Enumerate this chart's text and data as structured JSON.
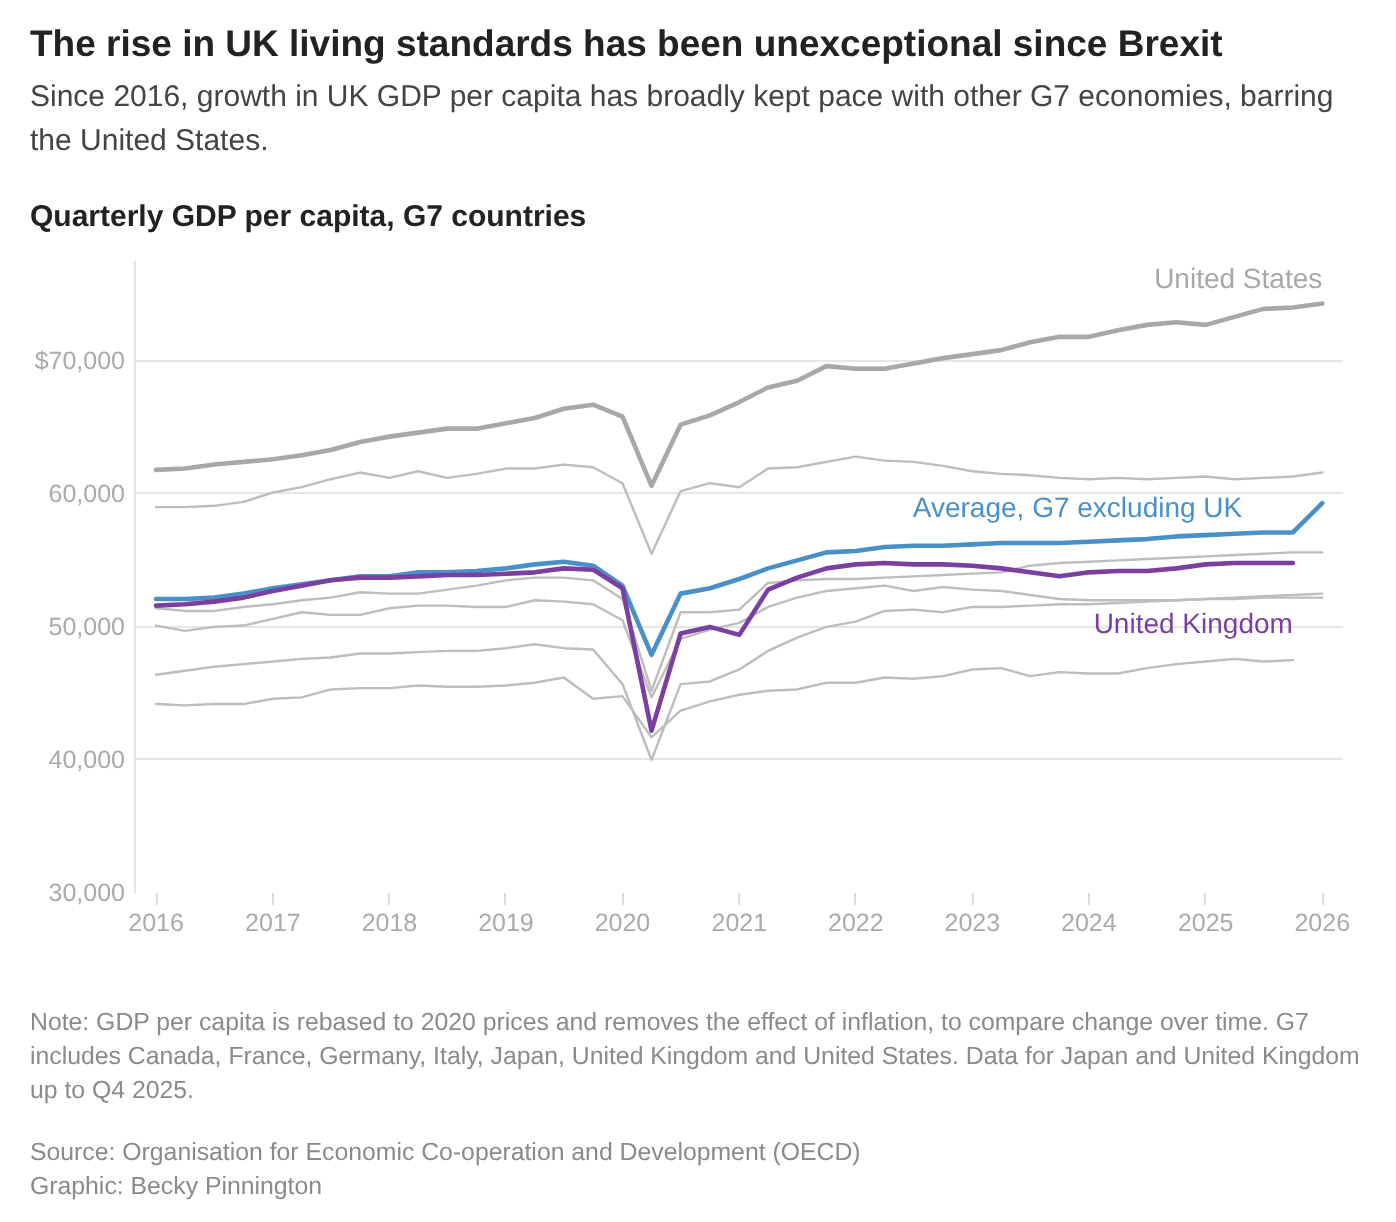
{
  "chart_data": {
    "type": "line",
    "title": "The rise in UK living standards has been unexceptional since Brexit",
    "subtitle": "Since 2016, growth in UK GDP per capita has broadly kept pace with other G7 economies, barring the United States.",
    "ylabel": "Quarterly GDP per capita, G7 countries",
    "annotations": [
      "Note: GDP per capita is rebased to 2020 prices and removes the effect of inflation, to compare change over time. G7 includes Canada, France, Germany, Italy, Japan, United Kingdom and United States. Data for Japan and United Kingdom up to Q4 2025.",
      "Source: Organisation for Economic Co-operation and Development (OECD)",
      "Graphic: Becky Pinnington"
    ],
    "x": [
      "2016-01",
      "2016-04",
      "2016-07",
      "2016-10",
      "2017-01",
      "2017-04",
      "2017-07",
      "2017-10",
      "2018-01",
      "2018-04",
      "2018-07",
      "2018-10",
      "2019-01",
      "2019-04",
      "2019-07",
      "2019-10",
      "2020-01",
      "2020-04",
      "2020-07",
      "2020-10",
      "2021-01",
      "2021-04",
      "2021-07",
      "2021-10",
      "2022-01",
      "2022-04",
      "2022-07",
      "2022-10",
      "2023-01",
      "2023-04",
      "2023-07",
      "2023-10",
      "2024-01",
      "2024-04",
      "2024-07",
      "2024-10",
      "2025-01",
      "2025-04",
      "2025-07",
      "2025-10",
      "2026-01"
    ],
    "xlim": [
      "2015-10-27",
      "2026-03-07"
    ],
    "xticks": [
      "2016",
      "2017",
      "2018",
      "2019",
      "2020",
      "2021",
      "2022",
      "2023",
      "2024",
      "2025",
      "2026"
    ],
    "ylim": [
      30000,
      77500
    ],
    "yticks": [
      {
        "value": 30000,
        "label": "30,000"
      },
      {
        "value": 40000,
        "label": "40,000"
      },
      {
        "value": 50000,
        "label": "50,000"
      },
      {
        "value": 60000,
        "label": "60,000"
      },
      {
        "value": 70000,
        "label": "$70,000"
      }
    ],
    "grid": "y",
    "series": [
      {
        "name": "United States",
        "color": "#a8a8a8",
        "values": [
          61800,
          61900,
          62200,
          62400,
          62600,
          62900,
          63300,
          63900,
          64300,
          64600,
          64900,
          64900,
          65300,
          65700,
          66400,
          66700,
          65800,
          60600,
          65200,
          65900,
          66900,
          68000,
          68500,
          69600,
          69400,
          69400,
          69800,
          70200,
          70500,
          70800,
          71400,
          71800,
          71800,
          72300,
          72700,
          72900,
          72700,
          73300,
          73900,
          74000,
          74300
        ]
      },
      {
        "color": "#bdbdbd",
        "values": [
          59000,
          59000,
          59100,
          59400,
          60100,
          60500,
          61100,
          61600,
          61200,
          61700,
          61200,
          61500,
          61900,
          61900,
          62200,
          62000,
          60800,
          55500,
          60200,
          60800,
          60500,
          61900,
          62000,
          62400,
          62800,
          62500,
          62400,
          62100,
          61700,
          61500,
          61400,
          61200,
          61100,
          61200,
          61100,
          61200,
          61300,
          61100,
          61200,
          61300,
          61600
        ]
      },
      {
        "color": "#bdbdbd",
        "values": [
          51400,
          51200,
          51200,
          51500,
          51700,
          52000,
          52200,
          52600,
          52500,
          52500,
          52800,
          53100,
          53500,
          53700,
          53700,
          53500,
          52100,
          45200,
          51100,
          51100,
          51300,
          53300,
          53500,
          53600,
          53600,
          53700,
          53800,
          53900,
          54000,
          54100,
          54600,
          54800,
          54900,
          55000,
          55100,
          55200,
          55300,
          55400,
          55500,
          55600,
          55600
        ]
      },
      {
        "color": "#bdbdbd",
        "values": [
          50100,
          49700,
          50000,
          50100,
          50600,
          51100,
          50900,
          50900,
          51400,
          51600,
          51600,
          51500,
          51500,
          52000,
          51900,
          51700,
          50500,
          44700,
          49100,
          49800,
          50300,
          51500,
          52200,
          52700,
          52900,
          53100,
          52700,
          53000,
          52800,
          52700,
          52400,
          52100,
          52000,
          52000,
          52000,
          52000,
          52100,
          52200,
          52300,
          52400,
          52500
        ]
      },
      {
        "color": "#bdbdbd",
        "values": [
          46400,
          46700,
          47000,
          47200,
          47400,
          47600,
          47700,
          48000,
          48000,
          48100,
          48200,
          48200,
          48400,
          48700,
          48400,
          48300,
          45700,
          40000,
          45700,
          45900,
          46800,
          48200,
          49200,
          50000,
          50400,
          51200,
          51300,
          51100,
          51500,
          51500,
          51600,
          51700,
          51700,
          51800,
          51900,
          52000,
          52100,
          52100,
          52200,
          52200,
          52200
        ]
      },
      {
        "color": "#bdbdbd",
        "values": [
          44200,
          44100,
          44200,
          44200,
          44600,
          44700,
          45300,
          45400,
          45400,
          45600,
          45500,
          45500,
          45600,
          45800,
          46200,
          44600,
          44800,
          41700,
          43700,
          44400,
          44900,
          45200,
          45300,
          45800,
          45800,
          46200,
          46100,
          46300,
          46800,
          46900,
          46300,
          46600,
          46500,
          46500,
          46900,
          47200,
          47400,
          47600,
          47400,
          47500,
          null
        ]
      },
      {
        "name": "Average, G7 excluding UK",
        "color": "#4a90c8",
        "values": [
          52100,
          52100,
          52200,
          52500,
          52900,
          53200,
          53500,
          53800,
          53800,
          54100,
          54100,
          54200,
          54400,
          54700,
          54900,
          54600,
          53100,
          47900,
          52500,
          52900,
          53600,
          54400,
          55000,
          55600,
          55700,
          56000,
          56100,
          56100,
          56200,
          56300,
          56300,
          56300,
          56400,
          56500,
          56600,
          56800,
          56900,
          57000,
          57100,
          57100,
          59300
        ]
      },
      {
        "name": "United Kingdom",
        "color": "#7b3f9f",
        "values": [
          51600,
          51700,
          51900,
          52200,
          52700,
          53100,
          53500,
          53700,
          53700,
          53800,
          53900,
          53900,
          54000,
          54100,
          54400,
          54300,
          52900,
          42200,
          49500,
          50000,
          49400,
          52800,
          53700,
          54400,
          54700,
          54800,
          54700,
          54700,
          54600,
          54400,
          54100,
          53800,
          54100,
          54200,
          54200,
          54400,
          54700,
          54800,
          54800,
          54800,
          null
        ]
      }
    ]
  }
}
